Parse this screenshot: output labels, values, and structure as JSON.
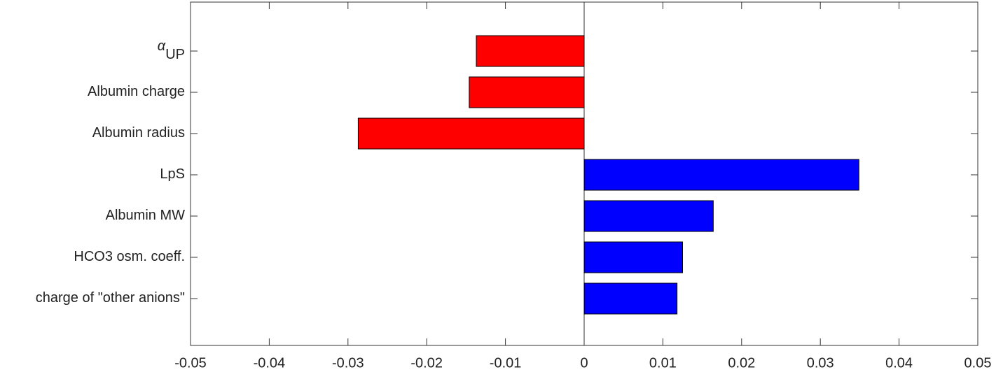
{
  "chart_data": {
    "type": "barh",
    "categories": [
      "α",
      "Albumin charge",
      "Albumin radius",
      "LpS",
      "Albumin MW",
      "HCO3 osm. coeff.",
      "charge of \"other anions\""
    ],
    "subscripts": [
      "UP",
      null,
      null,
      null,
      null,
      null,
      null
    ],
    "values": [
      -0.0137,
      -0.0146,
      -0.0287,
      0.0349,
      0.0164,
      0.0125,
      0.0118
    ],
    "colors": [
      "#ff0000",
      "#ff0000",
      "#ff0000",
      "#0000ff",
      "#0000ff",
      "#0000ff",
      "#0000ff"
    ],
    "xlim": [
      -0.05,
      0.05
    ],
    "xticks": [
      -0.05,
      -0.04,
      -0.03,
      -0.02,
      -0.01,
      0,
      0.01,
      0.02,
      0.03,
      0.04,
      0.05
    ]
  }
}
